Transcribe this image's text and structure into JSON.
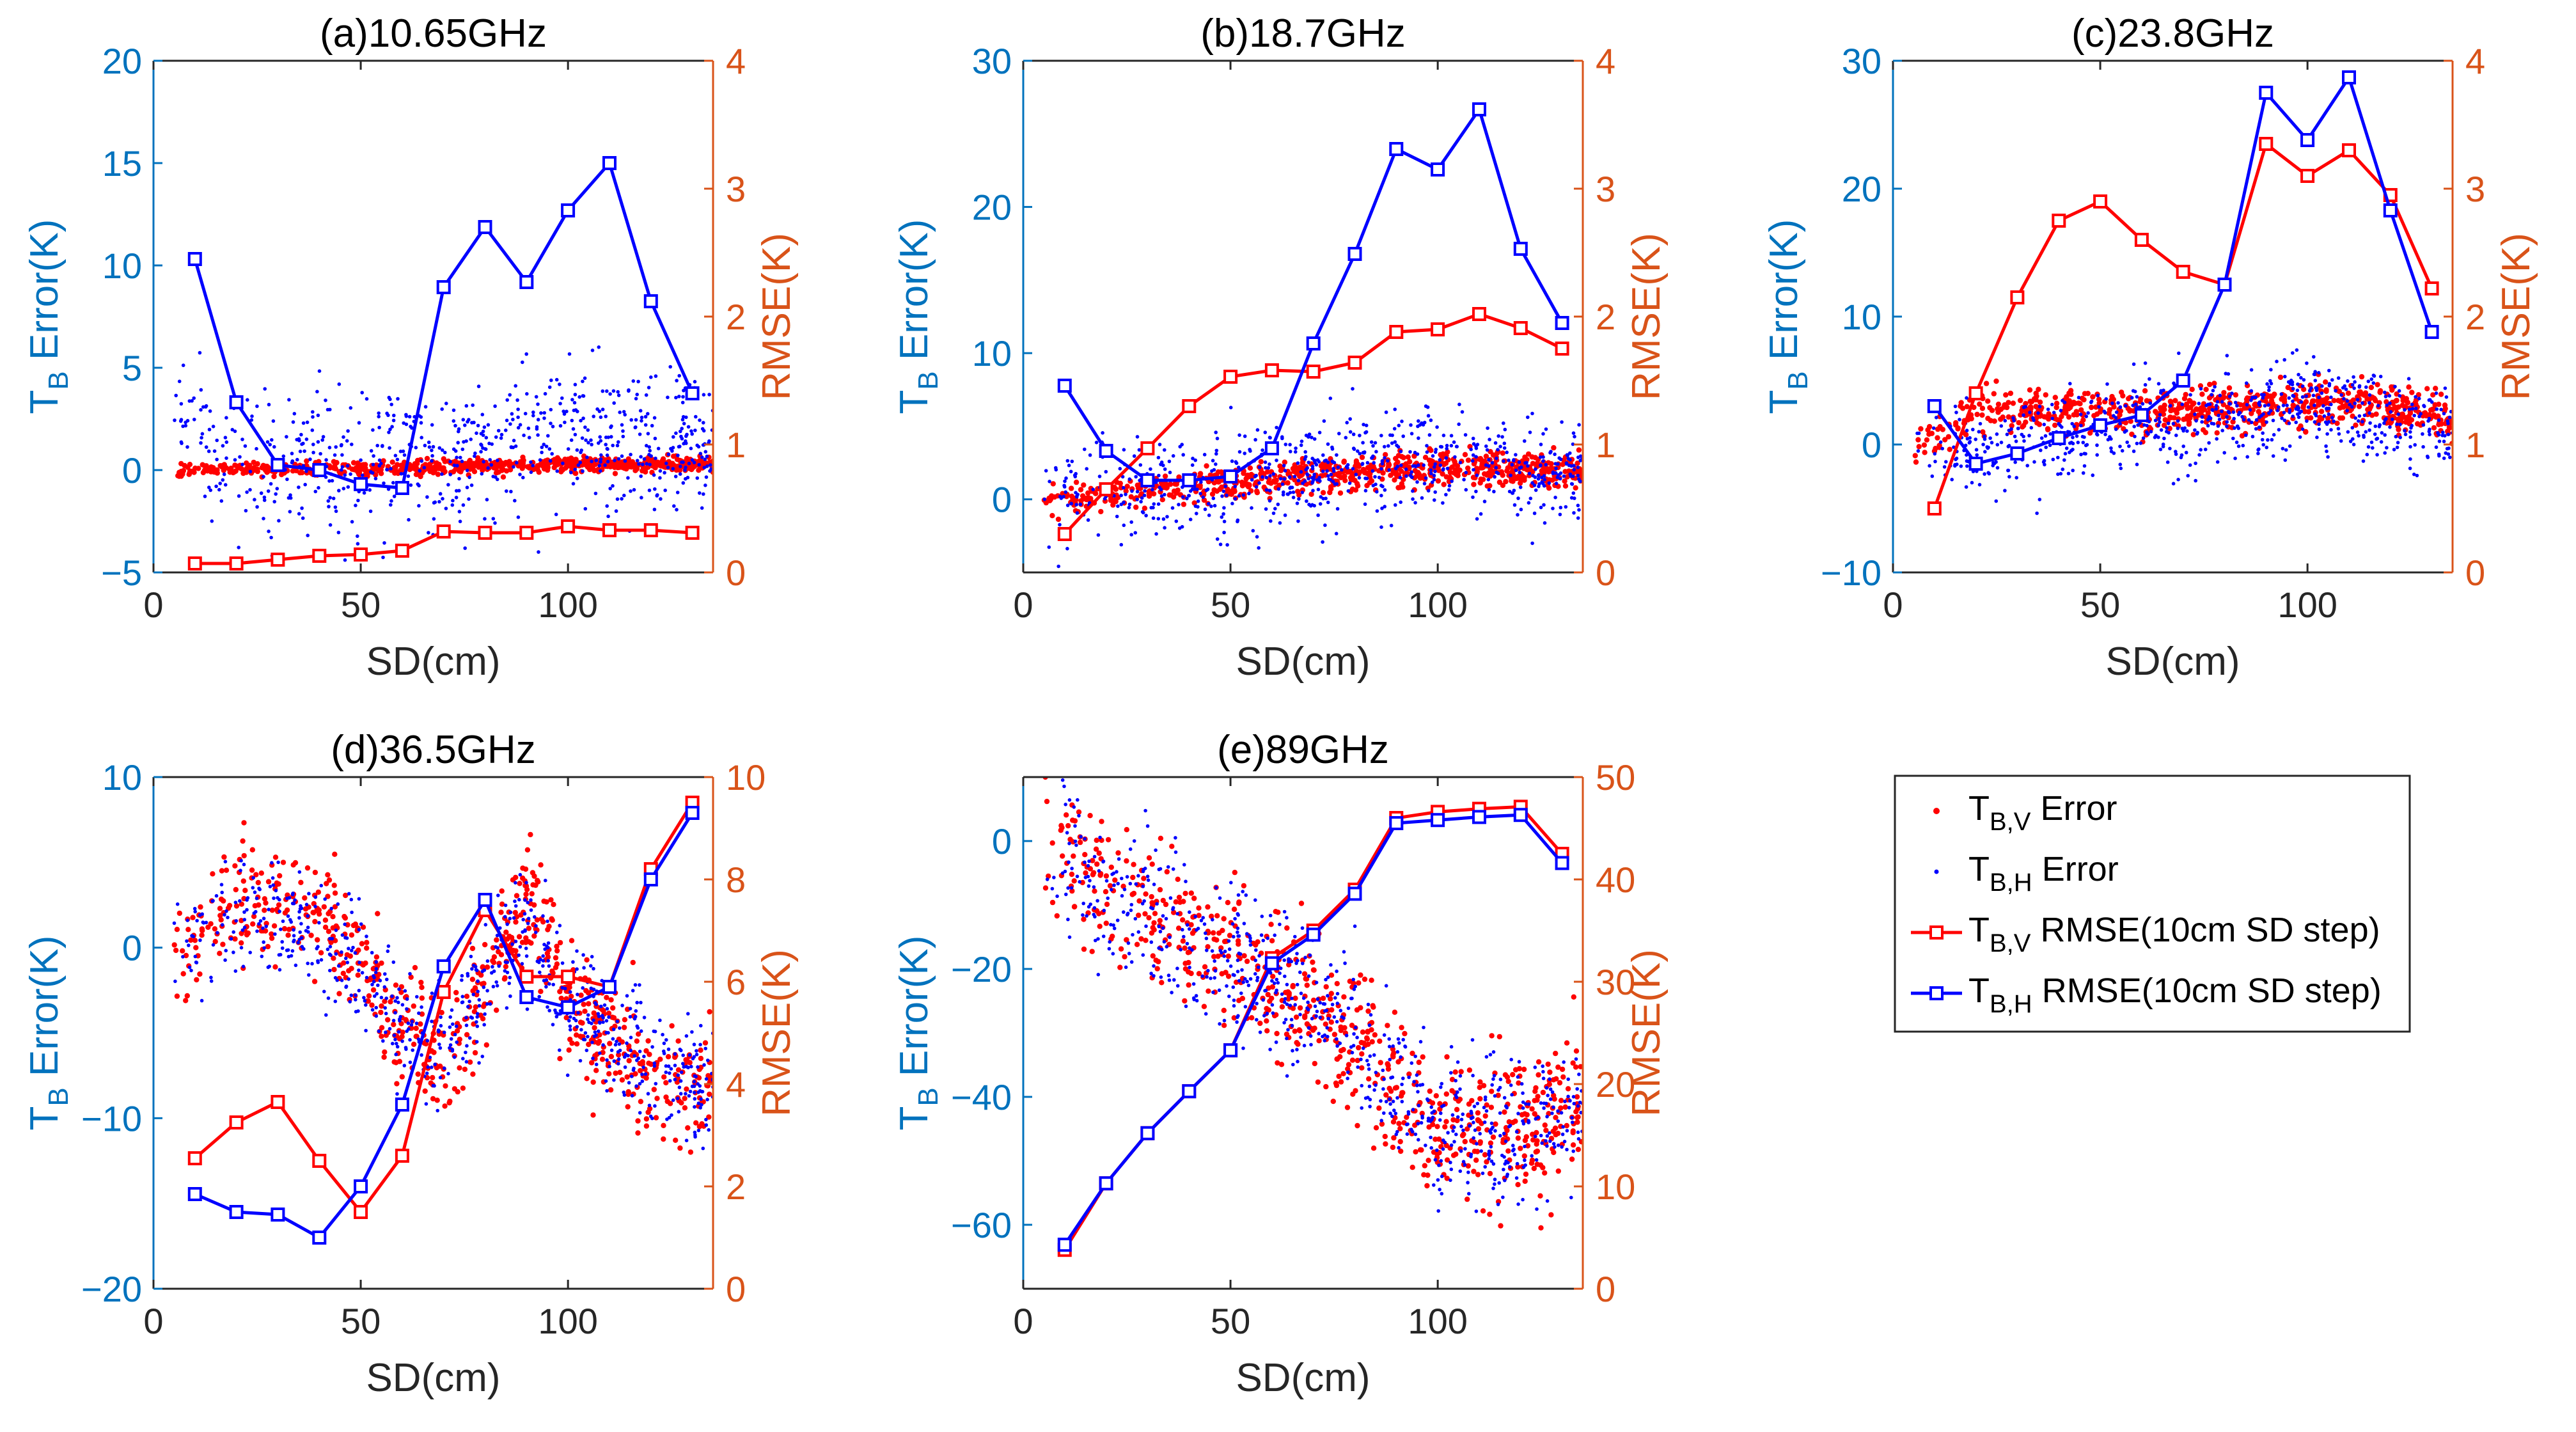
{
  "figure": {
    "legend": {
      "entries": [
        {
          "kind": "scatter",
          "color": "#FF0000",
          "main": "T",
          "sub": "B,V",
          "rest": " Error"
        },
        {
          "kind": "scatter",
          "color": "#0000FF",
          "main": "T",
          "sub": "B,H",
          "rest": " Error"
        },
        {
          "kind": "line",
          "color": "#FF0000",
          "main": "T",
          "sub": "B,V",
          "rest": " RMSE(10cm SD step)"
        },
        {
          "kind": "line",
          "color": "#0000FF",
          "main": "T",
          "sub": "B,H",
          "rest": " RMSE(10cm SD step)"
        }
      ],
      "location": "bottom-right empty panel"
    },
    "colors": {
      "left_axis": "#0072BD",
      "right_axis": "#D95319",
      "tbv": "#FF0000",
      "tbh": "#0000FF",
      "axes": "#262626"
    }
  },
  "chart_data": [
    {
      "type": "scatter",
      "title": "(a)10.65GHz",
      "xlabel": "SD(cm)",
      "ylabel": "T_B Error(K)",
      "y2label": "RMSE(K)",
      "xlim": [
        0,
        135
      ],
      "xticks": [
        0,
        50,
        100
      ],
      "ylim": [
        -5,
        20
      ],
      "yticks": [
        -5,
        0,
        5,
        10,
        15,
        20
      ],
      "y2lim": [
        0,
        4
      ],
      "y2ticks": [
        0,
        1,
        2,
        3,
        4
      ],
      "rmse_x": [
        10,
        20,
        30,
        40,
        50,
        60,
        70,
        80,
        90,
        100,
        110,
        120,
        130
      ],
      "series": [
        {
          "name": "T_B,V RMSE(10cm SD step)",
          "axis": "right",
          "values": [
            0.07,
            0.07,
            0.1,
            0.13,
            0.14,
            0.17,
            0.32,
            0.31,
            0.31,
            0.36,
            0.33,
            0.33,
            0.31
          ]
        },
        {
          "name": "T_B,H RMSE(10cm SD step)",
          "axis": "right",
          "values": [
            2.45,
            1.33,
            0.84,
            0.8,
            0.69,
            0.66,
            2.23,
            2.7,
            2.27,
            2.83,
            3.2,
            2.12,
            1.4
          ]
        }
      ],
      "scatter_model": {
        "TB_V_error": [
          [
            5,
            0
          ],
          [
            50,
            0.1
          ],
          [
            100,
            0.25
          ],
          [
            135,
            0.3
          ]
        ],
        "TB_H_error": [
          [
            5,
            2.5
          ],
          [
            20,
            0.8
          ],
          [
            50,
            0.2
          ],
          [
            70,
            0.5
          ],
          [
            100,
            2
          ],
          [
            120,
            1.5
          ],
          [
            135,
            1.4
          ]
        ],
        "TB_H_spread": 2.5,
        "TB_V_spread": 0.25
      }
    },
    {
      "type": "scatter",
      "title": "(b)18.7GHz",
      "xlabel": "SD(cm)",
      "ylabel": "T_B Error(K)",
      "y2label": "RMSE(K)",
      "xlim": [
        0,
        135
      ],
      "xticks": [
        0,
        50,
        100
      ],
      "ylim": [
        -5,
        30
      ],
      "yticks": [
        0,
        10,
        20,
        30
      ],
      "y2lim": [
        0,
        4
      ],
      "y2ticks": [
        0,
        1,
        2,
        3,
        4
      ],
      "rmse_x": [
        10,
        20,
        30,
        40,
        50,
        60,
        70,
        80,
        90,
        100,
        110,
        120,
        130
      ],
      "series": [
        {
          "name": "T_B,V RMSE(10cm SD step)",
          "axis": "right",
          "values": [
            0.3,
            0.65,
            0.97,
            1.3,
            1.53,
            1.58,
            1.57,
            1.64,
            1.88,
            1.9,
            2.02,
            1.91,
            1.75
          ]
        },
        {
          "name": "T_B,H RMSE(10cm SD step)",
          "axis": "right",
          "values": [
            1.46,
            0.95,
            0.72,
            0.72,
            0.75,
            0.97,
            1.79,
            2.49,
            3.31,
            3.15,
            3.62,
            2.53,
            1.95
          ]
        }
      ],
      "scatter_model": {
        "TB_V_error": [
          [
            5,
            0
          ],
          [
            50,
            1.2
          ],
          [
            100,
            2.2
          ],
          [
            135,
            2
          ]
        ],
        "TB_H_error": [
          [
            5,
            0.5
          ],
          [
            40,
            1
          ],
          [
            80,
            2
          ],
          [
            100,
            3
          ],
          [
            135,
            1.8
          ]
        ],
        "TB_H_spread": 2.5,
        "TB_V_spread": 0.8
      }
    },
    {
      "type": "scatter",
      "title": "(c)23.8GHz",
      "xlabel": "SD(cm)",
      "ylabel": "T_B Error(K)",
      "y2label": "RMSE(K)",
      "xlim": [
        0,
        135
      ],
      "xticks": [
        0,
        50,
        100
      ],
      "ylim": [
        -10,
        30
      ],
      "yticks": [
        -10,
        0,
        10,
        20,
        30
      ],
      "y2lim": [
        0,
        4
      ],
      "y2ticks": [
        0,
        1,
        2,
        3,
        4
      ],
      "rmse_x": [
        10,
        20,
        30,
        40,
        50,
        60,
        70,
        80,
        90,
        100,
        110,
        120,
        130
      ],
      "series": [
        {
          "name": "T_B,V RMSE(10cm SD step)",
          "axis": "right",
          "values": [
            0.5,
            1.4,
            2.15,
            2.75,
            2.9,
            2.6,
            2.35,
            2.25,
            3.35,
            3.1,
            3.3,
            2.95,
            2.22
          ]
        },
        {
          "name": "T_B,H RMSE(10cm SD step)",
          "axis": "right",
          "values": [
            1.3,
            0.85,
            0.93,
            1.05,
            1.15,
            1.23,
            1.5,
            2.25,
            3.75,
            3.38,
            3.87,
            2.83,
            1.88
          ]
        }
      ],
      "scatter_model": {
        "TB_V_error": [
          [
            5,
            0
          ],
          [
            20,
            2.5
          ],
          [
            60,
            2.5
          ],
          [
            90,
            3
          ],
          [
            110,
            3.5
          ],
          [
            135,
            2
          ]
        ],
        "TB_H_error": [
          [
            5,
            0
          ],
          [
            20,
            -1
          ],
          [
            50,
            1.5
          ],
          [
            80,
            2
          ],
          [
            100,
            3.5
          ],
          [
            135,
            1
          ]
        ],
        "TB_H_spread": 2.5,
        "TB_V_spread": 1.2
      }
    },
    {
      "type": "scatter",
      "title": "(d)36.5GHz",
      "xlabel": "SD(cm)",
      "ylabel": "T_B Error(K)",
      "y2label": "RMSE(K)",
      "xlim": [
        0,
        135
      ],
      "xticks": [
        0,
        50,
        100
      ],
      "ylim": [
        -20,
        10
      ],
      "yticks": [
        -20,
        -10,
        0,
        10
      ],
      "y2lim": [
        0,
        10
      ],
      "y2ticks": [
        0,
        2,
        4,
        6,
        8,
        10
      ],
      "rmse_x": [
        10,
        20,
        30,
        40,
        50,
        60,
        70,
        80,
        90,
        100,
        110,
        120,
        130
      ],
      "series": [
        {
          "name": "T_B,V RMSE(10cm SD step)",
          "axis": "right",
          "values": [
            2.55,
            3.25,
            3.65,
            2.5,
            1.5,
            2.6,
            5.8,
            7.4,
            6.1,
            6.1,
            5.9,
            8.2,
            9.5
          ]
        },
        {
          "name": "T_B,H RMSE(10cm SD step)",
          "axis": "right",
          "values": [
            1.85,
            1.5,
            1.45,
            1.0,
            2.0,
            3.6,
            6.3,
            7.6,
            5.7,
            5.5,
            5.9,
            8.0,
            9.3
          ]
        }
      ],
      "scatter_model": {
        "TB_V_error": [
          [
            5,
            0
          ],
          [
            20,
            3
          ],
          [
            40,
            2
          ],
          [
            55,
            -3
          ],
          [
            70,
            -7
          ],
          [
            90,
            3
          ],
          [
            100,
            -3
          ],
          [
            120,
            -8
          ],
          [
            135,
            -8
          ]
        ],
        "TB_H_error": [
          [
            5,
            0
          ],
          [
            20,
            2
          ],
          [
            40,
            1
          ],
          [
            55,
            -3
          ],
          [
            70,
            -6
          ],
          [
            90,
            2
          ],
          [
            100,
            -3
          ],
          [
            120,
            -7
          ],
          [
            135,
            -8
          ]
        ],
        "TB_H_spread": 2.5,
        "TB_V_spread": 2.5
      }
    },
    {
      "type": "scatter",
      "title": "(e)89GHz",
      "xlabel": "SD(cm)",
      "ylabel": "T_B Error(K)",
      "y2label": "RMSE(K)",
      "xlim": [
        0,
        135
      ],
      "xticks": [
        0,
        50,
        100
      ],
      "ylim": [
        -70,
        10
      ],
      "yticks": [
        -60,
        -40,
        -20,
        0
      ],
      "y2lim": [
        0,
        50
      ],
      "y2ticks": [
        0,
        10,
        20,
        30,
        40,
        50
      ],
      "rmse_x": [
        10,
        20,
        30,
        40,
        50,
        60,
        70,
        80,
        90,
        100,
        110,
        120,
        130
      ],
      "series": [
        {
          "name": "T_B,V RMSE(10cm SD step)",
          "axis": "right",
          "values": [
            3.8,
            10.3,
            15.2,
            19.3,
            23.3,
            32.3,
            35.0,
            39.0,
            46.0,
            46.6,
            46.9,
            47.1,
            42.5
          ]
        },
        {
          "name": "T_B,H RMSE(10cm SD step)",
          "axis": "right",
          "values": [
            4.3,
            10.3,
            15.2,
            19.3,
            23.3,
            31.8,
            34.6,
            38.6,
            45.5,
            45.8,
            46.1,
            46.3,
            41.6
          ]
        }
      ],
      "scatter_model": {
        "TB_V_error": [
          [
            5,
            0
          ],
          [
            20,
            -8
          ],
          [
            50,
            -18
          ],
          [
            70,
            -25
          ],
          [
            90,
            -38
          ],
          [
            100,
            -45
          ],
          [
            120,
            -45
          ],
          [
            135,
            -40
          ]
        ],
        "TB_H_error": [
          [
            5,
            0
          ],
          [
            20,
            -8
          ],
          [
            50,
            -18
          ],
          [
            70,
            -25
          ],
          [
            90,
            -38
          ],
          [
            100,
            -45
          ],
          [
            120,
            -45
          ],
          [
            135,
            -40
          ]
        ],
        "TB_H_spread": 8,
        "TB_V_spread": 8
      }
    }
  ]
}
